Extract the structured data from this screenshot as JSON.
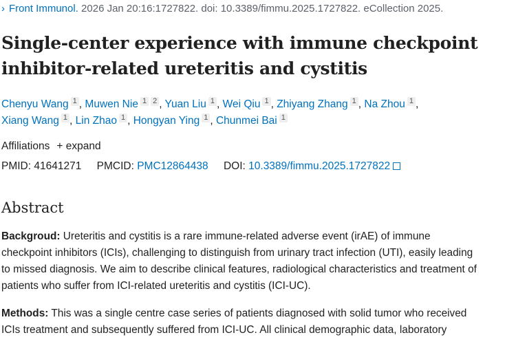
{
  "citation": {
    "journal": "Front Immunol.",
    "rest": " 2026 Jan 20:16:1727822. doi: 10.3389/fimmu.2025.1727822. eCollection 2025."
  },
  "title": "Single-center experience with immune checkpoint inhibitor-related ureteritis and cystitis",
  "authors": [
    {
      "name": "Chenyu Wang",
      "aff": [
        "1"
      ]
    },
    {
      "name": "Muwen Nie",
      "aff": [
        "1",
        "2"
      ]
    },
    {
      "name": "Yuan Liu",
      "aff": [
        "1"
      ]
    },
    {
      "name": "Wei Qiu",
      "aff": [
        "1"
      ]
    },
    {
      "name": "Zhiyang Zhang",
      "aff": [
        "1"
      ]
    },
    {
      "name": "Na Zhou",
      "aff": [
        "1"
      ]
    },
    {
      "name": "Xiang Wang",
      "aff": [
        "1"
      ]
    },
    {
      "name": "Lin Zhao",
      "aff": [
        "1"
      ]
    },
    {
      "name": "Hongyan Ying",
      "aff": [
        "1"
      ]
    },
    {
      "name": "Chunmei Bai",
      "aff": [
        "1"
      ]
    }
  ],
  "affiliations": {
    "label": "Affiliations",
    "expand": "+ expand"
  },
  "ids": {
    "pmid_label": "PMID:",
    "pmid": "41641271",
    "pmcid_label": "PMCID:",
    "pmcid": "PMC12864438",
    "doi_label": "DOI:",
    "doi": "10.3389/fimmu.2025.1727822"
  },
  "abstract": {
    "heading": "Abstract",
    "background": {
      "label": "Backgroud:",
      "lines": [
        " Ureteritis and cystitis is a rare immune-related adverse event (irAE) of immune",
        "checkpoint inhibitors (ICIs), challenging to distinguish from urinary tract infection (UTI), easily leading",
        "to missed diagnosis. We aim to describe clinical features, radiological characteristics and treatment of",
        "patients who suffer from ICI-related ureteritis and cystitis (ICI-UC)."
      ]
    },
    "methods": {
      "label": "Methods:",
      "lines": [
        " This was a single centre case series of patients diagnosed with solid tumor who received",
        "ICIs treatment and subsequently suffered from ICI-UC. All clinical demographic data, laboratory"
      ]
    }
  }
}
